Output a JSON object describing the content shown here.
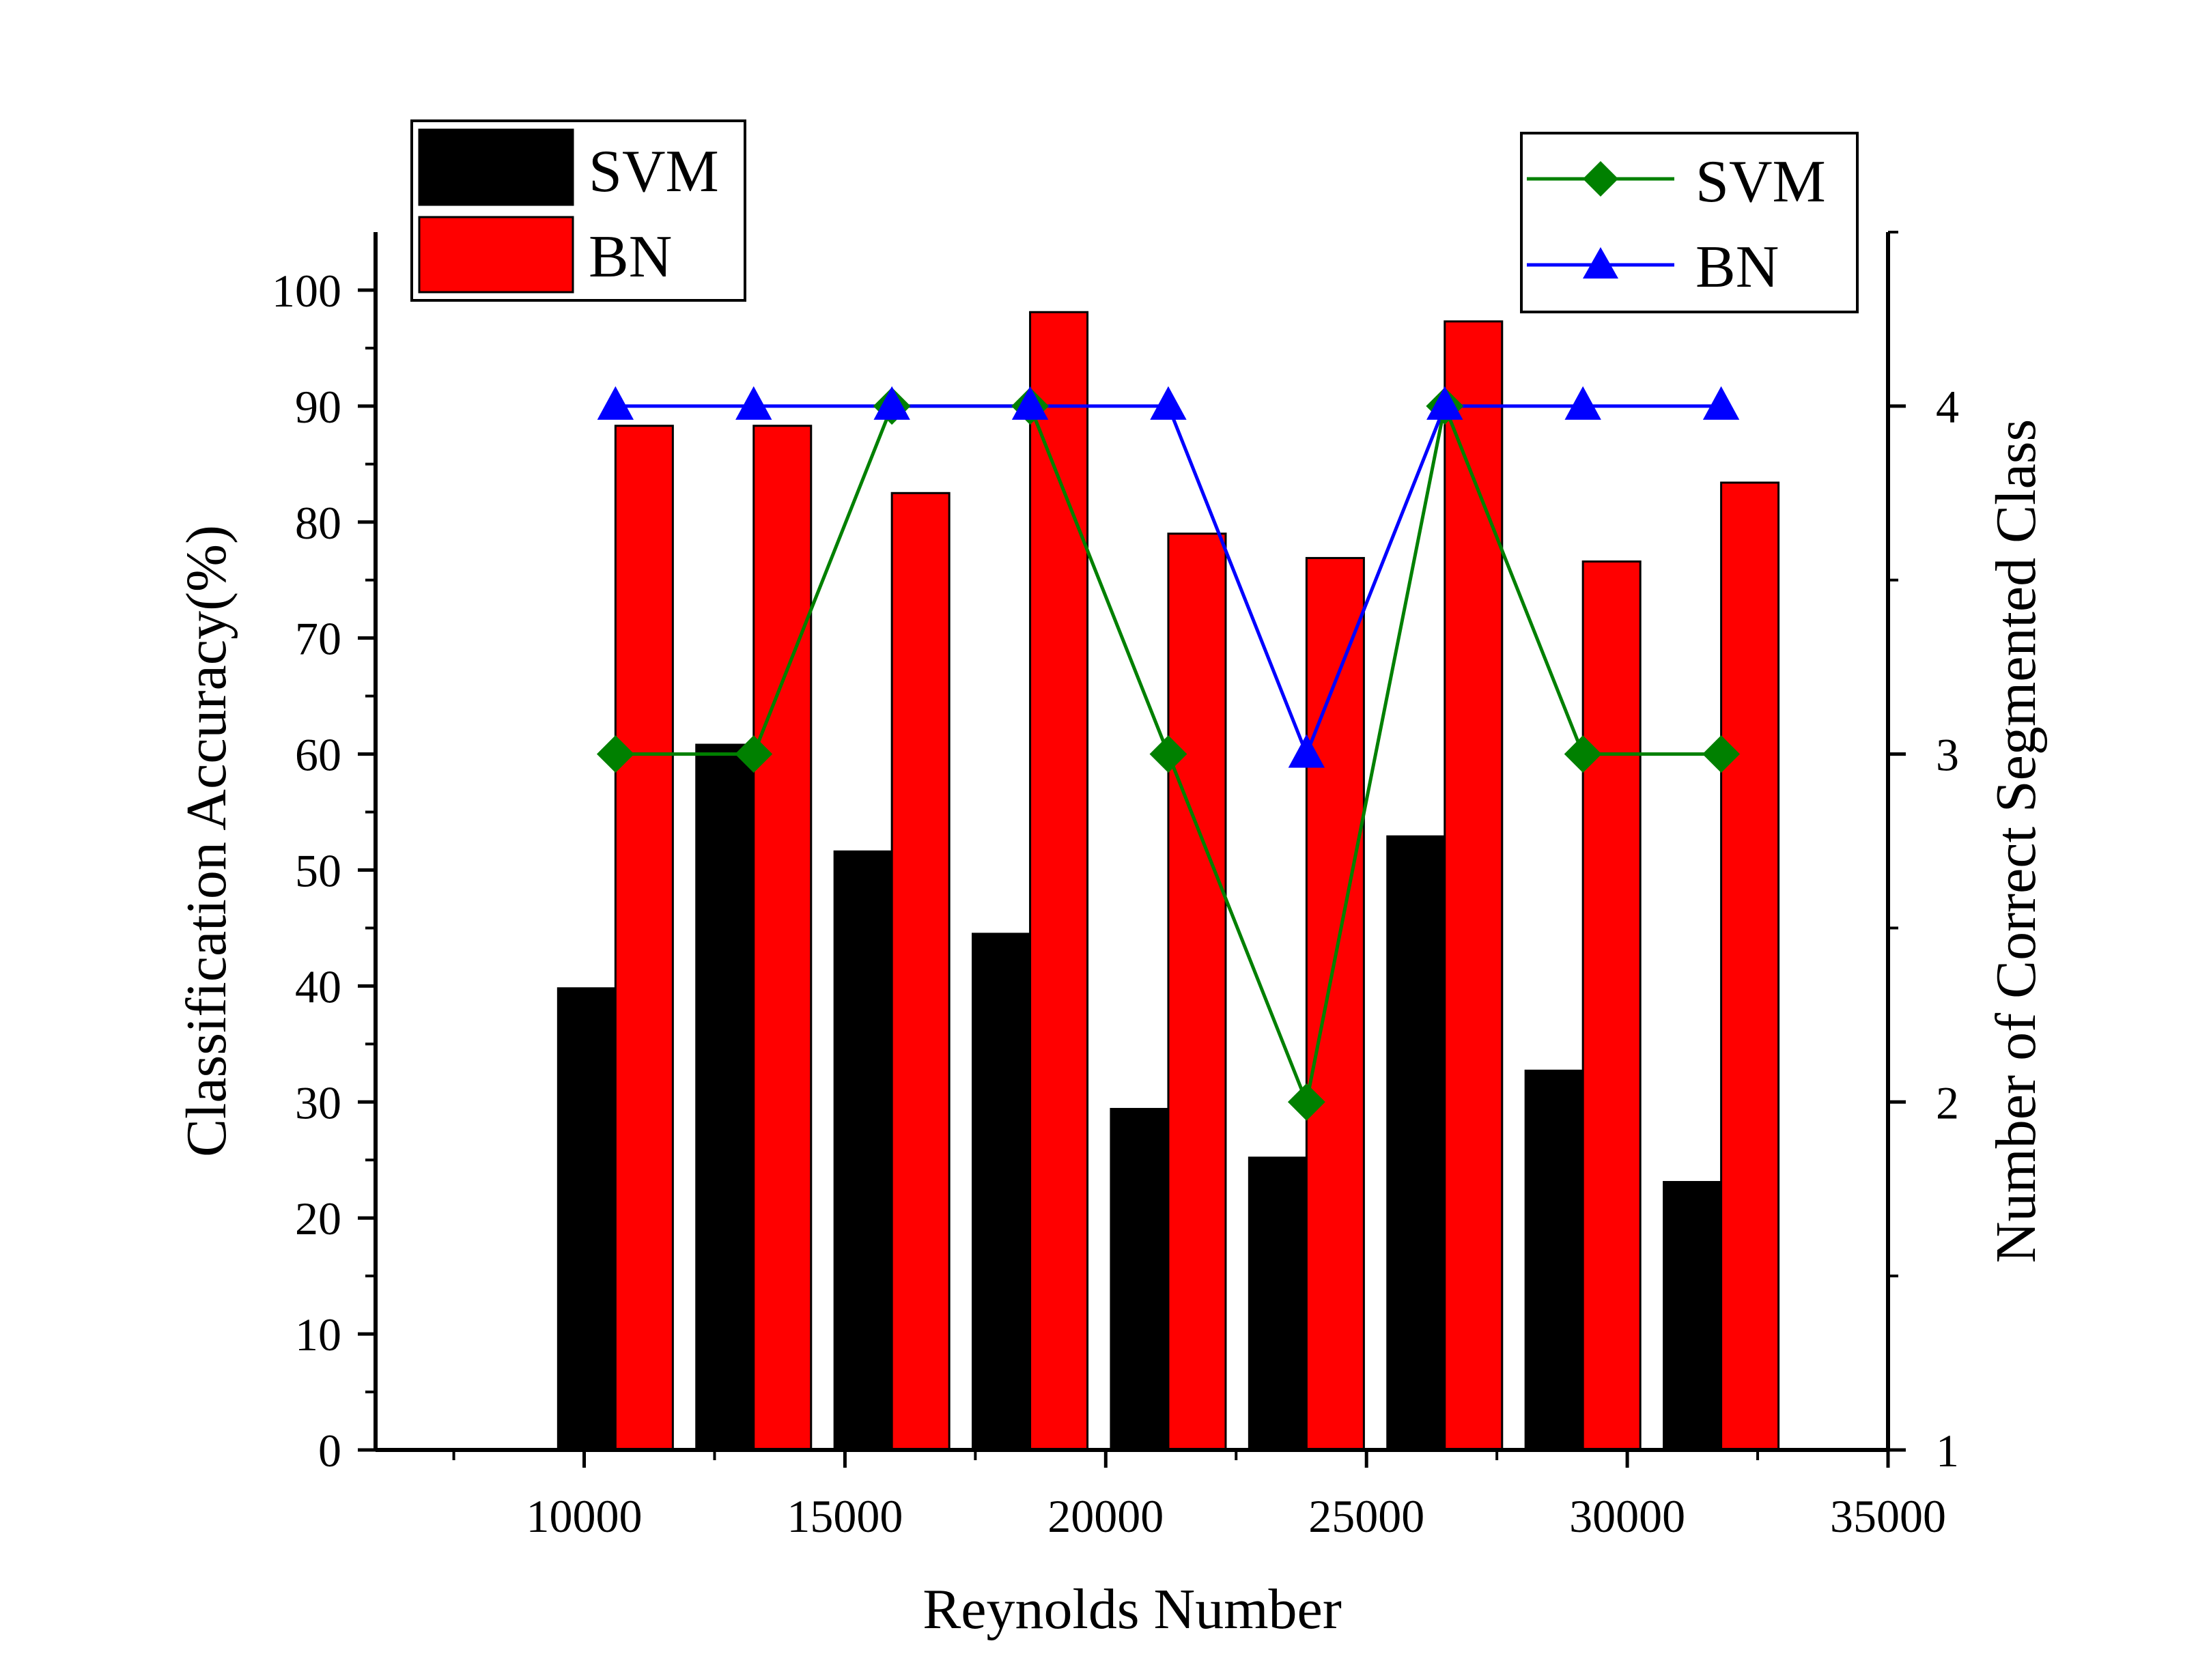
{
  "chart_data": {
    "type": "bar",
    "title": "",
    "xlabel": "Reynolds Number",
    "ylabel": "Classification Accuracy(%)",
    "y2label": "Number of Correct Segmented Class",
    "xlim": [
      6000,
      35000
    ],
    "ylim": [
      0,
      105
    ],
    "y2lim": [
      1,
      4.5
    ],
    "x_ticks": [
      "10000",
      "15000",
      "20000",
      "25000",
      "30000",
      "35000"
    ],
    "y_ticks": [
      "0",
      "10",
      "20",
      "30",
      "40",
      "50",
      "60",
      "70",
      "80",
      "90",
      "100"
    ],
    "y2_ticks": [
      "1",
      "2",
      "3",
      "4"
    ],
    "x": [
      10600,
      13250,
      15900,
      18550,
      21200,
      23850,
      26500,
      29150,
      31800
    ],
    "bar_series": [
      {
        "name": "SVM",
        "color": "#000000",
        "values": [
          39.8,
          60.8,
          51.6,
          44.5,
          29.4,
          25.2,
          52.9,
          32.7,
          23.1
        ]
      },
      {
        "name": "BN",
        "color": "#ff0000",
        "values": [
          88.3,
          88.3,
          82.5,
          98.1,
          79.0,
          76.9,
          97.3,
          76.6,
          83.4
        ]
      }
    ],
    "line_series": [
      {
        "name": "SVM",
        "color": "#008000",
        "marker": "diamond",
        "axis": "right",
        "values": [
          3,
          3,
          4,
          4,
          3,
          2,
          4,
          3,
          3
        ]
      },
      {
        "name": "BN",
        "color": "#0000ff",
        "marker": "triangle",
        "axis": "right",
        "values": [
          4,
          4,
          4,
          4,
          4,
          3,
          4,
          4,
          4
        ]
      }
    ],
    "legends": {
      "bars_placement": "top-left",
      "lines_placement": "top-right"
    },
    "grid": false
  }
}
